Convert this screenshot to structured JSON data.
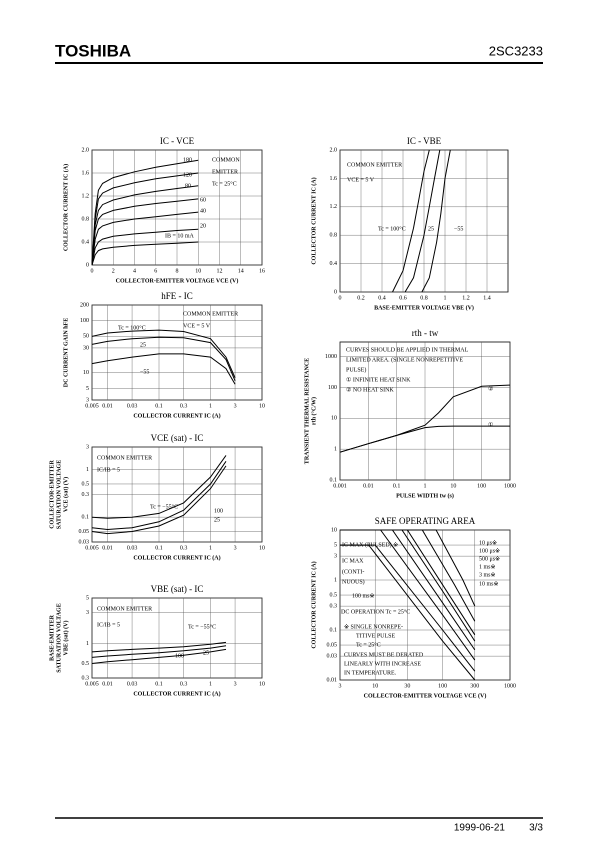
{
  "header": {
    "brand": "TOSHIBA",
    "part": "2SC3233"
  },
  "footer": {
    "date": "1999-06-21",
    "page": "3/3"
  },
  "chart_data": [
    {
      "type": "line",
      "title": "IC - VCE",
      "xlabel": "COLLECTOR-EMITTER VOLTAGE VCE (V)",
      "ylabel": "COLLECTOR CURRENT IC (A)",
      "xlim": [
        0,
        16
      ],
      "xticks": [
        0,
        2,
        4,
        6,
        8,
        10,
        12,
        14,
        16
      ],
      "ylim": [
        0,
        2
      ],
      "yticks": [
        0,
        0.4,
        0.8,
        1.2,
        1.6,
        {
          "value": 2,
          "label": "2.0"
        }
      ],
      "grid": true,
      "color": "#000000",
      "annotations": [
        "COMMON",
        "EMITTER",
        "Tc = 25°C"
      ],
      "series": [
        {
          "name": "180",
          "x": [
            0,
            0.3,
            0.6,
            1,
            2,
            4,
            6,
            8,
            10
          ],
          "values": [
            0,
            0.9,
            1.3,
            1.42,
            1.52,
            1.62,
            1.7,
            1.76,
            1.82
          ]
        },
        {
          "name": "120",
          "x": [
            0,
            0.3,
            0.6,
            1,
            2,
            4,
            6,
            8,
            10
          ],
          "values": [
            0,
            0.8,
            1.15,
            1.25,
            1.34,
            1.43,
            1.5,
            1.55,
            1.6
          ]
        },
        {
          "name": "80",
          "x": [
            0,
            0.3,
            0.6,
            1,
            2,
            4,
            6,
            8,
            10
          ],
          "values": [
            0,
            0.7,
            0.95,
            1.05,
            1.13,
            1.22,
            1.28,
            1.33,
            1.38
          ]
        },
        {
          "name": "60",
          "x": [
            0,
            0.3,
            0.6,
            1,
            2,
            4,
            6,
            8,
            10
          ],
          "values": [
            0,
            0.6,
            0.8,
            0.88,
            0.95,
            1.02,
            1.07,
            1.11,
            1.15
          ]
        },
        {
          "name": "40",
          "x": [
            0,
            0.3,
            0.6,
            1,
            2,
            4,
            6,
            8,
            10
          ],
          "values": [
            0,
            0.45,
            0.62,
            0.68,
            0.74,
            0.8,
            0.84,
            0.88,
            0.92
          ]
        },
        {
          "name": "20",
          "x": [
            0,
            0.3,
            0.6,
            1,
            2,
            4,
            6,
            8,
            10
          ],
          "values": [
            0,
            0.3,
            0.4,
            0.45,
            0.5,
            0.54,
            0.57,
            0.6,
            0.62
          ]
        },
        {
          "name": "IB = 10 mA",
          "x": [
            0,
            0.3,
            0.6,
            1,
            2,
            4,
            6,
            8,
            10
          ],
          "values": [
            0,
            0.18,
            0.25,
            0.28,
            0.31,
            0.34,
            0.36,
            0.38,
            0.4
          ]
        }
      ]
    },
    {
      "type": "line",
      "title": "IC - VBE",
      "xlabel": "BASE-EMITTER VOLTAGE VBE (V)",
      "ylabel": "COLLECTOR CURRENT IC (A)",
      "xlim": [
        0,
        1.6
      ],
      "xticks": [
        0,
        0.2,
        0.4,
        0.6,
        0.8,
        1.0,
        1.2,
        1.4
      ],
      "ylim": [
        0,
        2
      ],
      "yticks": [
        0,
        0.4,
        0.8,
        1.2,
        1.6,
        {
          "value": 2,
          "label": "2.0"
        }
      ],
      "grid": true,
      "color": "#000000",
      "annotations": [
        "COMMON EMITTER",
        "VCE = 5 V"
      ],
      "series": [
        {
          "name": "Tc = 100°C",
          "x": [
            0.5,
            0.6,
            0.7,
            0.75,
            0.8,
            0.85
          ],
          "values": [
            0,
            0.3,
            0.9,
            1.3,
            1.7,
            2.0
          ]
        },
        {
          "name": "25",
          "x": [
            0.62,
            0.7,
            0.8,
            0.85,
            0.9,
            0.95
          ],
          "values": [
            0,
            0.2,
            0.8,
            1.2,
            1.6,
            2.0
          ]
        },
        {
          "name": "−55",
          "x": [
            0.78,
            0.85,
            0.92,
            0.96,
            1.0,
            1.05
          ],
          "values": [
            0,
            0.2,
            0.7,
            1.1,
            1.6,
            2.0
          ]
        }
      ]
    },
    {
      "type": "line",
      "title": "hFE - IC",
      "xlabel": "COLLECTOR CURRENT IC (A)",
      "ylabel": "DC CURRENT GAIN hFE",
      "xscale": "log",
      "yscale": "log",
      "xlim": [
        0.005,
        10
      ],
      "xticks": [
        0.005,
        0.01,
        0.03,
        0.1,
        0.3,
        1,
        3,
        10
      ],
      "ylim": [
        3,
        200
      ],
      "yticks": [
        3,
        5,
        10,
        30,
        50,
        100,
        200
      ],
      "grid": true,
      "color": "#000000",
      "annotations": [
        "COMMON EMITTER",
        "VCE = 5 V"
      ],
      "series": [
        {
          "name": "Tc = 100°C",
          "x": [
            0.005,
            0.01,
            0.03,
            0.1,
            0.3,
            1,
            2,
            3
          ],
          "values": [
            50,
            58,
            63,
            66,
            62,
            45,
            20,
            8
          ]
        },
        {
          "name": "25",
          "x": [
            0.005,
            0.01,
            0.03,
            0.1,
            0.3,
            1,
            2,
            3
          ],
          "values": [
            35,
            40,
            45,
            48,
            47,
            38,
            18,
            7
          ]
        },
        {
          "name": "−55",
          "x": [
            0.005,
            0.01,
            0.03,
            0.1,
            0.3,
            1,
            2,
            3
          ],
          "values": [
            15,
            17,
            20,
            23,
            23,
            20,
            12,
            6
          ]
        }
      ]
    },
    {
      "type": "line",
      "title": "VCE (sat) - IC",
      "xlabel": "COLLECTOR CURRENT IC (A)",
      "ylabel": [
        "COLLECTOR-EMITTER",
        "SATURATION VOLTAGE",
        "VCE (sat) (V)"
      ],
      "xscale": "log",
      "yscale": "log",
      "xlim": [
        0.005,
        10
      ],
      "xticks": [
        0.005,
        0.01,
        0.03,
        0.1,
        0.3,
        1,
        3,
        10
      ],
      "ylim": [
        0.03,
        3
      ],
      "yticks": [
        0.03,
        0.05,
        0.1,
        0.3,
        0.5,
        1,
        3
      ],
      "grid": true,
      "color": "#000000",
      "annotations": [
        "COMMON EMITTER",
        "IC/IB = 5"
      ],
      "series": [
        {
          "name": "Tc = −55°C",
          "x": [
            0.005,
            0.01,
            0.03,
            0.1,
            0.3,
            1,
            2
          ],
          "values": [
            0.1,
            0.095,
            0.1,
            0.12,
            0.2,
            0.7,
            2
          ]
        },
        {
          "name": "25",
          "x": [
            0.005,
            0.01,
            0.03,
            0.1,
            0.3,
            1,
            2
          ],
          "values": [
            0.06,
            0.055,
            0.06,
            0.08,
            0.14,
            0.5,
            1.5
          ]
        },
        {
          "name": "100",
          "x": [
            0.005,
            0.01,
            0.03,
            0.1,
            0.3,
            1,
            2
          ],
          "values": [
            0.05,
            0.045,
            0.05,
            0.065,
            0.11,
            0.4,
            1.2
          ]
        }
      ]
    },
    {
      "type": "line",
      "title": "VBE (sat) - IC",
      "xlabel": "COLLECTOR CURRENT IC (A)",
      "ylabel": [
        "BASE-EMITTER",
        "SATURATION VOLTAGE",
        "VBE (sat) (V)"
      ],
      "xscale": "log",
      "yscale": "log",
      "xlim": [
        0.005,
        10
      ],
      "xticks": [
        0.005,
        0.01,
        0.03,
        0.1,
        0.3,
        1,
        3,
        10
      ],
      "ylim": [
        0.3,
        5
      ],
      "yticks": [
        0.3,
        0.5,
        1,
        3,
        5
      ],
      "grid": true,
      "color": "#000000",
      "annotations": [
        "COMMON EMITTER",
        "IC/IB = 5"
      ],
      "series": [
        {
          "name": "Tc = −55°C",
          "x": [
            0.005,
            0.01,
            0.03,
            0.1,
            0.3,
            1,
            2
          ],
          "values": [
            0.75,
            0.78,
            0.82,
            0.86,
            0.9,
            0.98,
            1.05
          ]
        },
        {
          "name": "25",
          "x": [
            0.005,
            0.01,
            0.03,
            0.1,
            0.3,
            1,
            2
          ],
          "values": [
            0.62,
            0.65,
            0.69,
            0.73,
            0.78,
            0.86,
            0.93
          ]
        },
        {
          "name": "100",
          "x": [
            0.005,
            0.01,
            0.03,
            0.1,
            0.3,
            1,
            2
          ],
          "values": [
            0.5,
            0.53,
            0.57,
            0.62,
            0.67,
            0.75,
            0.82
          ]
        }
      ]
    },
    {
      "type": "line",
      "title": "rth - tw",
      "xlabel": "PULSE WIDTH tw (s)",
      "ylabel": [
        "TRANSIENT THERMAL RESISTANCE",
        "rth (°C/W)"
      ],
      "xscale": "log",
      "yscale": "log",
      "xlim": [
        0.001,
        1000
      ],
      "xticks": [
        0.001,
        0.01,
        0.1,
        1,
        10,
        100,
        1000
      ],
      "ylim": [
        0.1,
        3000
      ],
      "yticks": [
        0.1,
        1,
        10,
        100,
        1000
      ],
      "grid": true,
      "color": "#000000",
      "annotations": [
        "CURVES SHOULD BE APPLIED IN THERMAL",
        "LIMITED AREA. (SINGLE NONREPETITIVE",
        "PULSE)",
        "①  INFINITE HEAT SINK",
        "②  NO HEAT SINK"
      ],
      "series": [
        {
          "name": "①",
          "x": [
            0.001,
            0.01,
            0.1,
            1,
            3,
            10,
            100,
            1000
          ],
          "values": [
            0.8,
            1.5,
            2.8,
            5,
            5.5,
            5.6,
            5.6,
            5.6
          ]
        },
        {
          "name": "②",
          "x": [
            0.001,
            0.01,
            0.1,
            1,
            3,
            10,
            100,
            1000
          ],
          "values": [
            0.8,
            1.5,
            2.8,
            6,
            15,
            50,
            110,
            120
          ]
        }
      ]
    },
    {
      "type": "line",
      "title": "SAFE OPERATING AREA",
      "xlabel": "COLLECTOR-EMITTER VOLTAGE VCE (V)",
      "ylabel": "COLLECTOR CURRENT IC (A)",
      "xscale": "log",
      "yscale": "log",
      "xlim": [
        3,
        1000
      ],
      "xticks": [
        3,
        10,
        30,
        100,
        300,
        1000
      ],
      "ylim": [
        0.01,
        10
      ],
      "yticks": [
        0.01,
        0.03,
        0.05,
        0.1,
        0.3,
        0.5,
        1,
        3,
        5,
        10
      ],
      "grid": true,
      "color": "#000000",
      "annotations": [
        "IC MAX (PULSED) ※",
        "IC MAX",
        "(CONTI-",
        "NUOUS)",
        "※  SINGLE NONREPE-",
        "TITIVE PULSE",
        "Tc = 25°C",
        "CURVES MUST BE DERATED",
        "LINEARLY WITH INCREASE",
        "IN TEMPERATURE."
      ],
      "series": [
        {
          "name": "10 μs※",
          "x": [
            3,
            80,
            200,
            300
          ],
          "values": [
            10,
            10,
            1,
            0.3
          ]
        },
        {
          "name": "100 μs※",
          "x": [
            3,
            50,
            150,
            300
          ],
          "values": [
            10,
            10,
            0.8,
            0.15
          ]
        },
        {
          "name": "500 μs※",
          "x": [
            3,
            30,
            100,
            300
          ],
          "values": [
            10,
            10,
            0.8,
            0.08
          ]
        },
        {
          "name": "1 ms※",
          "x": [
            3,
            25,
            100,
            300
          ],
          "values": [
            10,
            10,
            0.6,
            0.06
          ]
        },
        {
          "name": "3 ms※",
          "x": [
            3,
            18,
            100,
            300
          ],
          "values": [
            10,
            10,
            0.35,
            0.04
          ]
        },
        {
          "name": "10 ms※",
          "x": [
            3,
            12,
            100,
            300
          ],
          "values": [
            10,
            10,
            0.2,
            0.025
          ]
        },
        {
          "name": "100 ms※",
          "x": [
            3,
            10,
            100,
            300
          ],
          "values": [
            5,
            5,
            0.1,
            0.015
          ]
        },
        {
          "name": "DC OPERATION Tc = 25°C",
          "x": [
            3,
            8,
            100,
            300
          ],
          "values": [
            5,
            5,
            0.06,
            0.01
          ]
        }
      ]
    }
  ]
}
